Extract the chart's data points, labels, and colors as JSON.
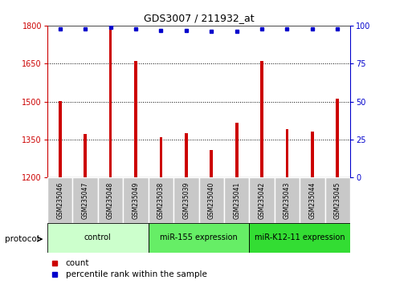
{
  "title": "GDS3007 / 211932_at",
  "samples": [
    "GSM235046",
    "GSM235047",
    "GSM235048",
    "GSM235049",
    "GSM235038",
    "GSM235039",
    "GSM235040",
    "GSM235041",
    "GSM235042",
    "GSM235043",
    "GSM235044",
    "GSM235045"
  ],
  "bar_values": [
    1503,
    1371,
    1795,
    1660,
    1358,
    1375,
    1310,
    1415,
    1660,
    1390,
    1380,
    1510
  ],
  "percentile_values": [
    98,
    98,
    99,
    98,
    97,
    97,
    96,
    96,
    98,
    98,
    98,
    98
  ],
  "bar_color": "#cc0000",
  "percentile_color": "#0000cc",
  "ylim_left": [
    1200,
    1800
  ],
  "ylim_right": [
    0,
    100
  ],
  "yticks_left": [
    1200,
    1350,
    1500,
    1650,
    1800
  ],
  "yticks_right": [
    0,
    25,
    50,
    75,
    100
  ],
  "group_configs": [
    {
      "start": 0,
      "end": 4,
      "color": "#ccffcc",
      "label": "control"
    },
    {
      "start": 4,
      "end": 8,
      "color": "#66ee66",
      "label": "miR-155 expression"
    },
    {
      "start": 8,
      "end": 12,
      "color": "#33dd33",
      "label": "miR-K12-11 expression"
    }
  ],
  "protocol_label": "protocol",
  "legend_count_label": "count",
  "legend_percentile_label": "percentile rank within the sample",
  "sample_box_color": "#c8c8c8",
  "sample_box_edge_color": "#ffffff"
}
